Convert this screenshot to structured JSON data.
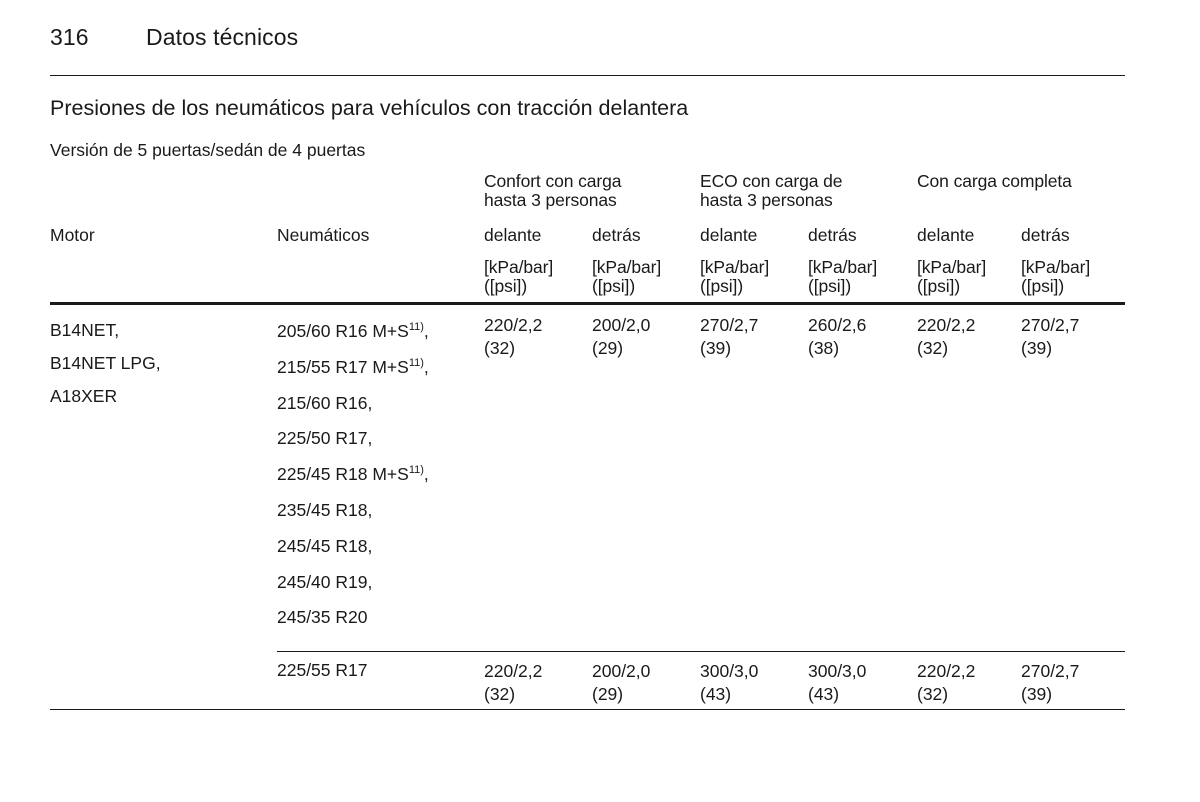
{
  "page": {
    "number": "316",
    "chapter": "Datos técnicos"
  },
  "section_title": "Presiones de los neumáticos para vehículos con tracción delantera",
  "subsection_title": "Versión de 5 puertas/sedán de 4 puertas",
  "table": {
    "group_headers": [
      "Confort con carga\nhasta 3 personas",
      "ECO con carga de\nhasta 3 personas",
      "Con carga completa"
    ],
    "col_motor": "Motor",
    "col_tyres": "Neumáticos",
    "sub_front": "delante",
    "sub_rear": "detrás",
    "unit": "[kPa/bar]\n([psi])",
    "motors": [
      "B14NET,",
      "B14NET LPG,",
      "A18XER"
    ],
    "tyres_group1": [
      {
        "size": "205/60 R16 M+S",
        "note": "11)",
        "suffix": ","
      },
      {
        "size": "215/55 R17 M+S",
        "note": "11)",
        "suffix": ","
      },
      {
        "size": "215/60 R16,",
        "note": "",
        "suffix": ""
      },
      {
        "size": "225/50 R17,",
        "note": "",
        "suffix": ""
      },
      {
        "size": "225/45 R18 M+S",
        "note": "11)",
        "suffix": ","
      },
      {
        "size": "235/45 R18,",
        "note": "",
        "suffix": ""
      },
      {
        "size": "245/45 R18,",
        "note": "",
        "suffix": ""
      },
      {
        "size": "245/40 R19,",
        "note": "",
        "suffix": ""
      },
      {
        "size": "245/35 R20",
        "note": "",
        "suffix": ""
      }
    ],
    "values_group1": [
      "220/2,2\n(32)",
      "200/2,0\n(29)",
      "270/2,7\n(39)",
      "260/2,6\n(38)",
      "220/2,2\n(32)",
      "270/2,7\n(39)"
    ],
    "tyres_group2": "225/55 R17",
    "values_group2": [
      "220/2,2\n(32)",
      "200/2,0\n(29)",
      "300/3,0\n(43)",
      "300/3,0\n(43)",
      "220/2,2\n(32)",
      "270/2,7\n(39)"
    ]
  }
}
